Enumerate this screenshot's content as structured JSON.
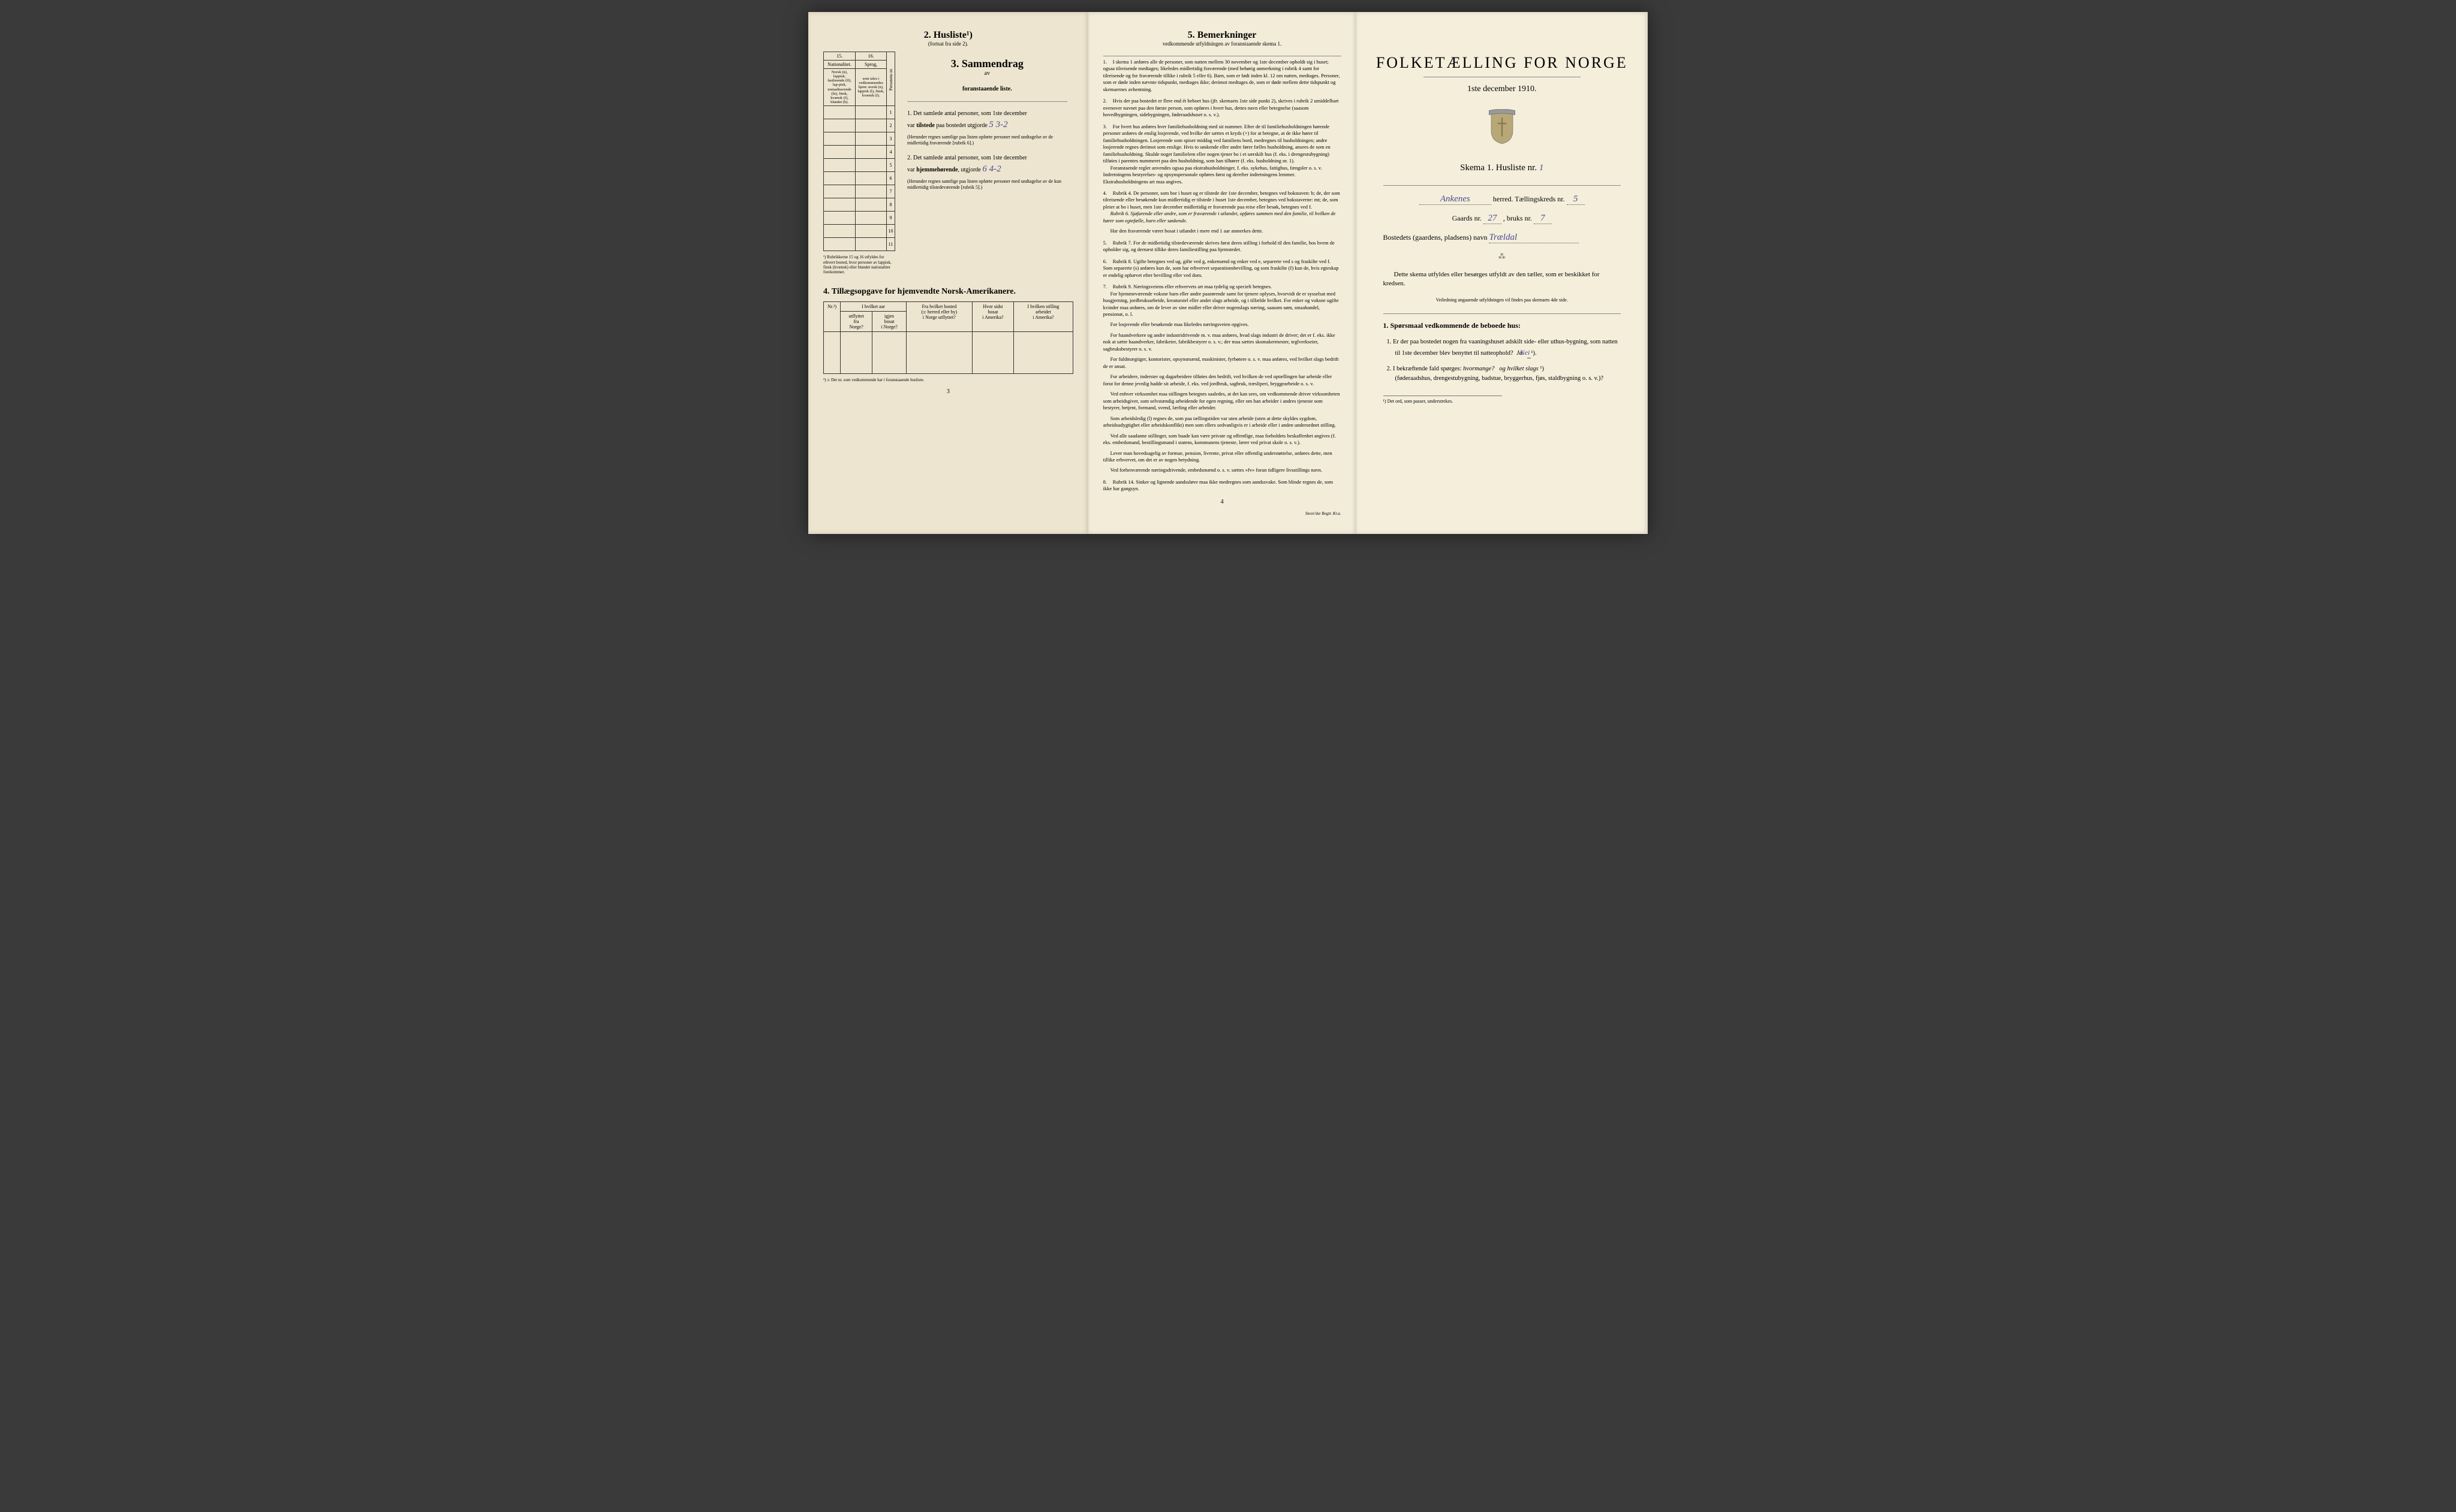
{
  "page1": {
    "husliste": {
      "title": "2. Husliste¹)",
      "subtitle": "(fortsat fra side 2).",
      "col15": "15.",
      "col16": "16.",
      "col15_label": "Nationalitet.",
      "col16_label": "Sprog,",
      "col15_desc": "Norsk (n), lappisk, fastboende (lf), lap-pisk, nomadiserende (ln), finsk, kvænsk (f), blandet (b).",
      "col16_desc": "som tales i vedkommendes hjem: norsk (n), lappisk (l), finsk, kvænsk (f).",
      "personer_label": "Personens nr.",
      "row_numbers": [
        "1",
        "2",
        "3",
        "4",
        "5",
        "6",
        "7",
        "8",
        "9",
        "10",
        "11"
      ],
      "footnote": "¹) Rubrikkerne 15 og 16 utfyldes for ethvert bosted, hvor personer av lappisk, finsk (kvænsk) eller blandet nationalitet forekommer."
    },
    "sammendrag": {
      "title": "3. Sammendrag",
      "sub1": "av",
      "sub2": "foranstaaende liste.",
      "item1_num": "1.",
      "item1_text": "Det samlede antal personer, som 1ste december",
      "item1_line2a": "var ",
      "item1_line2b": "tilstede",
      "item1_line2c": " paa bostedet utgjorde",
      "item1_value": "5    3-2",
      "item1_note": "(Herunder regnes samtlige paa listen opførte personer med undtagelse av de midlertidig fraværende [rubrik 6].)",
      "item2_num": "2.",
      "item2_text": "Det samlede antal personer, som 1ste december",
      "item2_line2a": "var ",
      "item2_line2b": "hjemmehørende",
      "item2_line2c": ", utgjorde",
      "item2_value": "6    4-2",
      "item2_note": "(Herunder regnes samtlige paa listen opførte personer med undtagelse av de kun midlertidig tilstedeværende [rubrik 5].)"
    },
    "tillaeg": {
      "title": "4. Tillægsopgave for hjemvendte Norsk-Amerikanere.",
      "headers": {
        "nr": "Nr.²)",
        "col1a": "I hvilket aar",
        "col1b_l": "utflyttet\nfra\nNorge?",
        "col1b_r": "igjen\nbosat\ni Norge?",
        "col2": "Fra hvilket bosted\n(ɔ: herred eller by)\ni Norge utflyttet?",
        "col3": "Hvor sidst\nbosat\ni Amerika?",
        "col4": "I hvilken stilling\narbeidet\ni Amerika?"
      },
      "footnote": "²) ɔ: Det nr. som vedkommende har i foranstaaende husliste."
    },
    "page_num": "3"
  },
  "page2": {
    "title": "5. Bemerkninger",
    "subtitle": "vedkommende utfyldningen av foranstaaende skema 1.",
    "items": [
      "I skema 1 anføres alle de personer, som natten mellem 30 november og 1ste december opholdt sig i huset; ogsaa tilreisende medtages; likeledes midlertidig fraværende (med behørig anmerkning i rubrik 4 samt for tilreisende og for fraværende tillike i rubrik 5 eller 6). Barn, som er født inden kl. 12 om natten, medtages. Personer, som er døde inden nævnte tidspunkt, medtages ikke; derimot medtages de, som er døde mellem dette tidspunkt og skemaernes avhentning.",
      "Hvis der paa bostedet er flere end ét beboet hus (jfr. skemaets 1ste side punkt 2), skrives i rubrik 2 umiddelbart ovenover navnet paa den første person, som opføres i hvert hus, dettes navn eller betegnelse (saasom hovedbygningen, sidebygningen, føderaadshuset o. s. v.).",
      "For hvert hus anføres hver familiehusholdning med sit nummer. Efter de til familiehusholdningen hørende personer anføres de enslig losjerende, ved hvilke der sættes et kryds (×) for at betegne, at de ikke hører til familiehusholdningen. Losjerende som spiser middag ved familiens bord, medregnes til husholdningen; andre losjerende regnes derimot som enslige. Hvis to søskende eller andre fører fælles husholdning, ansees de som en familiehusholdning. Skulde noget familielem eller nogen tjener bo i et særskilt hus (f. eks. i drengestubygning) tilføies i parentes nummeret paa den husholdning, som han tilhører (f. eks. husholdning nr. 1).",
      "Rubrik 4. De personer, som bor i huset og er tilstede der 1ste december, betegnes ved bokstaven: b; de, der som tilreisende eller besøkende kun midlertidig er tilstede i huset 1ste december, betegnes ved bokstaverne: mt; de, som pleier at bo i huset, men 1ste december midlertidig er fraværende paa reise eller besøk, betegnes ved f.",
      "Rubrik 7. For de midlertidig tilstedeværende skrives først deres stilling i forhold til den familie, hos hvem de opholder sig, og dernæst tillike deres familiestilling paa hjemstedet.",
      "Rubrik 8. Ugifte betegnes ved ug, gifte ved g, enkemænd og enker ved e, separerte ved s og fraskilte ved f. Som separerte (s) anføres kun de, som har erhvervet separationsbevilling, og som fraskilte (f) kun de, hvis egteskap er endelig ophævet efter bevilling eller ved dom.",
      "Rubrik 9. Næringsveiens eller erhvervets art maa tydelig og specielt betegnes.",
      "Rubrik 14. Sinker og lignende aandssløve maa ikke medregnes som aandssvake. Som blinde regnes de, som ikke har gangsyn."
    ],
    "item3_extra": "Foranstaende regler anvendes ogsaa paa ekstrahusholdninger, f. eks. sykehus, fattighus, fængsler o. s. v. Indretningens bestyrelses- og opsynspersonale opføres først og derefter indretningens lemmer. Ekstrahusholdningens art maa angives.",
    "item4_extra1": "Rubrik 6. Sjøfarende eller andre, som er fraværende i utlandet, opføres sammen med den familie, til hvilken de hører som egtefælle, barn eller søskende.",
    "item4_extra2": "Har den fraværende været bosat i utlandet i mere end 1 aar anmerkes dette.",
    "item7_paras": [
      "For hjemmeværende voksne barn eller andre paarørende samt for tjenere oplyses, hvorvidt de er sysselsat med husgjerning, jordbruksarbeide, kreaturstel eller andet slags arbeide, og i tilfælde hvilket. For enker og voksne ugifte kvinder maa anføres, om de lever av sine midler eller driver nogenslags næring, saasom søm, smaahandel, pensionat, o. l.",
      "For losjerende eller besøkende maa likeledes næringsveien opgives.",
      "For haandverkere og andre industridrivende m. v. maa anføres, hvad slags industri de driver; det er f. eks. ikke nok at sætte haandverker, fabrikeier, fabrikbestyrer o. s. v.; der maa sættes skomakermester, teglverkseier, sagbruksbestyrer o. s. v.",
      "For fuldmægtiger, kontorister, opsynsmænd, maskinister, fyrbøtere o. s. v. maa anføres, ved hvilket slags bedrift de er ansat.",
      "For arbeidere, inderster og dagarbeidere tilføies den bedrift, ved hvilken de ved optællingen har arbeide eller forut for denne jevnlig hadde sit arbeide, f. eks. ved jordbruk, sagbruk, træsliperi, bryggearbeide o. s. v.",
      "Ved enhver virksomhet maa stillingen betegnes saaledes, at det kan sees, om vedkommende driver virksomheten som arbeidsgiver, som selvstændig arbeidende for egen regning, eller om han arbeider i andres tjeneste som bestyrer, betjent, formand, svend, lærling eller arbeider.",
      "Som arbeidsledig (l) regnes de, som paa tællingstiden var uten arbeide (uten at dette skyldes sygdom, arbeidsudygtighet eller arbeidskonflikt) men som ellers sedvanligvis er i arbeide eller i anden underordnet stilling.",
      "Ved alle saadanne stillinger, som baade kan være private og offentlige, maa forholdets beskaffenhet angives (f. eks. embedsmand, bestillingsmand i statens, kommunens tjeneste, lærer ved privat skole o. s. v.).",
      "Lever man hovedsagelig av formue, pension, livrente, privat eller offentlig understøttelse, anføres dette, men tillike erhvervet, om det er av nogen betydning.",
      "Ved forhenværende næringsdrivende, embedsmænd o. s. v. sættes «fv» foran tidligere livsstillings navn."
    ],
    "page_num": "4",
    "printer": "Steen'ske Bogtr. Kr.a."
  },
  "page3": {
    "main_title": "FOLKETÆLLING FOR NORGE",
    "date": "1ste december 1910.",
    "skema_label": "Skema 1.  Husliste nr.",
    "skema_value": "1",
    "herred_value": "Ankenes",
    "herred_label": " herred.  Tællingskreds nr.",
    "kreds_value": "5",
    "gaards_label": "Gaards nr.",
    "gaards_value": "27",
    "bruks_label": ", bruks nr.",
    "bruks_value": "7",
    "bosted_label": "Bostedets (gaardens, pladsens) navn",
    "bosted_value": "Trældal",
    "instruction": "Dette skema utfyldes eller besørges utfyldt av den tæller, som er beskikket for kredsen.",
    "tiny_instruction": "Veiledning angaaende utfyldningen vil findes paa skemaets 4de side.",
    "q_header": "1. Spørsmaal vedkommende de beboede hus:",
    "q1_num": "1.",
    "q1_text": "Er der paa bostedet nogen fra vaaningshuset adskilt side- eller uthus-bygning, som natten til 1ste december blev benyttet til natteophold?",
    "q1_ja": "Ja.",
    "q1_nei": "Nei",
    "q1_sup": "¹).",
    "q2_num": "2.",
    "q2_text_a": "I bekræftende fald spørges: ",
    "q2_text_b": "hvormange?",
    "q2_text_c": " og hvilket slags",
    "q2_text_d": "¹)",
    "q2_text_e": "(føderaadshus, drengestubygning, badstue, bryggerhus, fjøs, staldbygning o. s. v.)?",
    "footnote": "¹) Det ord, som passer, understrekes."
  }
}
